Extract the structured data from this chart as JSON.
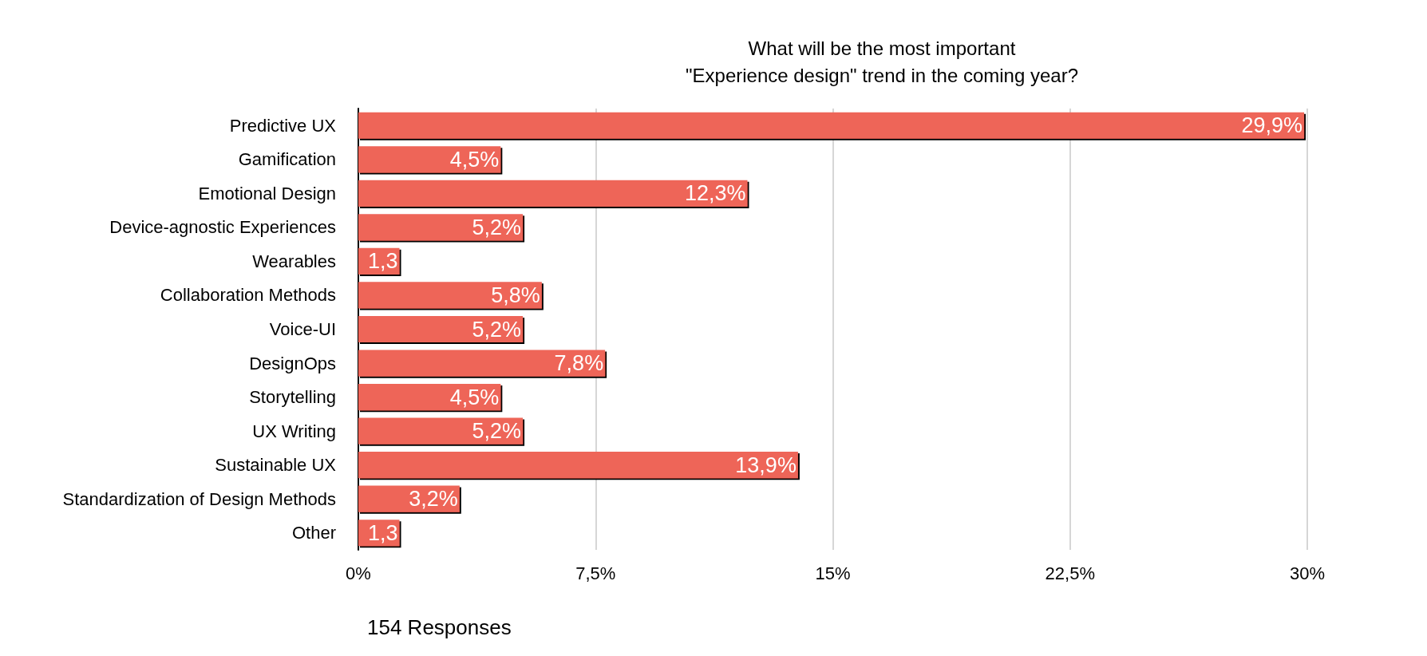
{
  "chart_data": {
    "type": "bar",
    "orientation": "horizontal",
    "title": "What will be the most important\n\"Experience design\" trend in the coming year?",
    "categories": [
      "Predictive UX",
      "Gamification",
      "Emotional Design",
      "Device-agnostic Experiences",
      "Wearables",
      "Collaboration Methods",
      "Voice-UI",
      "DesignOps",
      "Storytelling",
      "UX Writing",
      "Sustainable UX",
      "Standardization of Design Methods",
      "Other"
    ],
    "values": [
      29.9,
      4.5,
      12.3,
      5.2,
      1.3,
      5.8,
      5.2,
      7.8,
      4.5,
      5.2,
      13.9,
      3.2,
      1.3
    ],
    "value_labels": [
      "29,9%",
      "4,5%",
      "12,3%",
      "5,2%",
      "1,3",
      "5,8%",
      "5,2%",
      "7,8%",
      "4,5%",
      "5,2%",
      "13,9%",
      "3,2%",
      "1,3"
    ],
    "color": "#ee6558",
    "xlim": [
      0,
      30
    ],
    "xticks": [
      {
        "value": 0,
        "label": "0%"
      },
      {
        "value": 7.5,
        "label": "7,5%"
      },
      {
        "value": 15,
        "label": "15%"
      },
      {
        "value": 22.5,
        "label": "22,5%"
      },
      {
        "value": 30,
        "label": "30%"
      }
    ],
    "grid": "x",
    "annotations": [
      "154 Responses"
    ]
  }
}
